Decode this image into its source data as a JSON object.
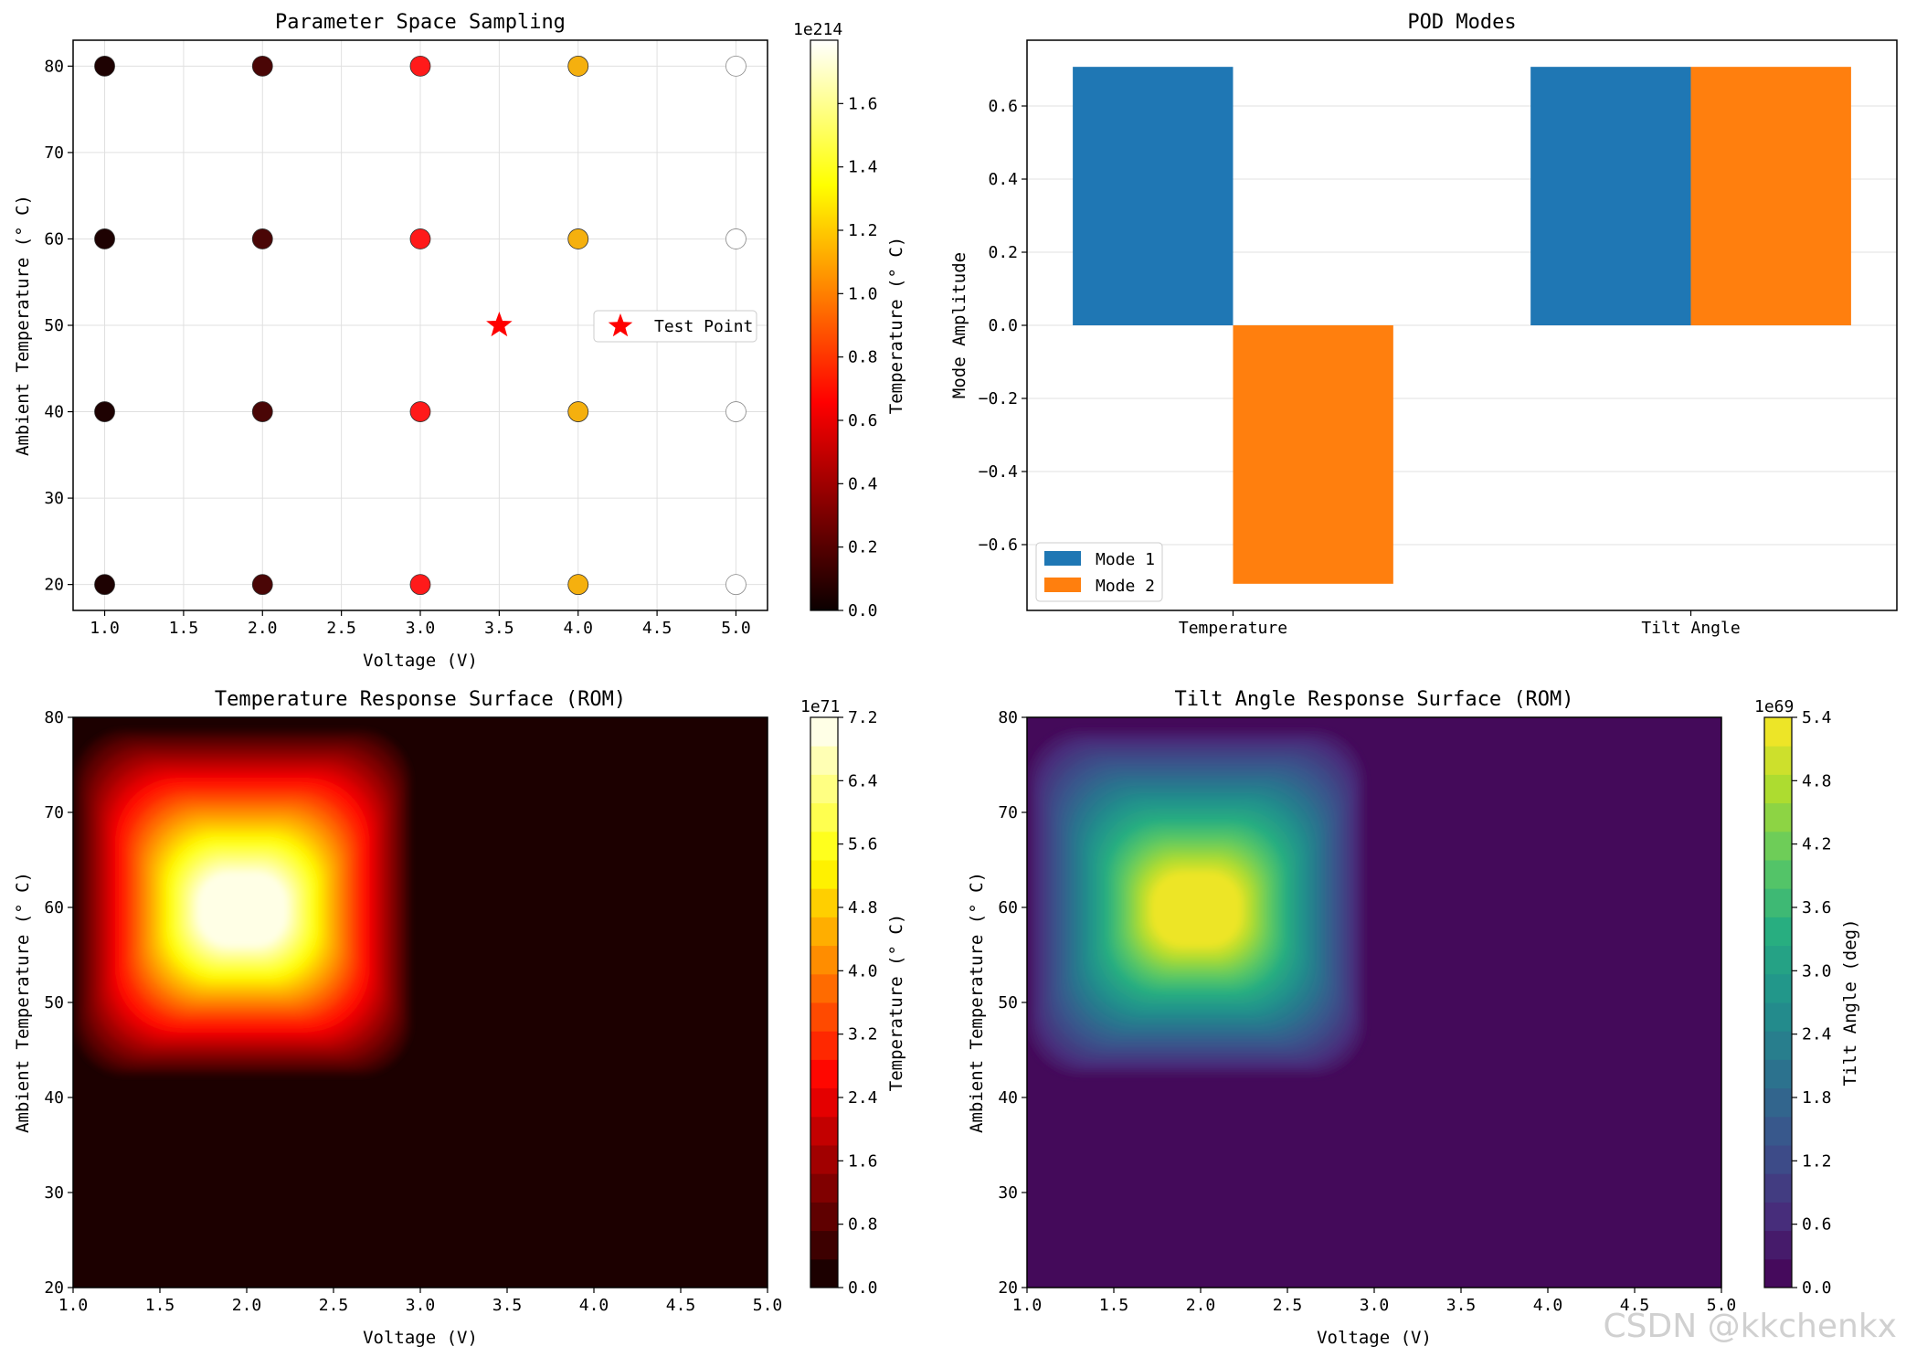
{
  "chart_data": [
    {
      "type": "scatter",
      "title": "Parameter Space Sampling",
      "xlabel": "Voltage (V)",
      "ylabel": "Ambient Temperature (° C)",
      "xlim": [
        0.8,
        5.2
      ],
      "ylim": [
        17,
        83
      ],
      "xticks": [
        "1.0",
        "1.5",
        "2.0",
        "2.5",
        "3.0",
        "3.5",
        "4.0",
        "4.5",
        "5.0"
      ],
      "yticks": [
        "20",
        "30",
        "40",
        "50",
        "60",
        "70",
        "80"
      ],
      "grid": true,
      "points": [
        {
          "x": 1,
          "y": 20,
          "color": "#1e0202"
        },
        {
          "x": 1,
          "y": 40,
          "color": "#1e0202"
        },
        {
          "x": 1,
          "y": 60,
          "color": "#1e0202"
        },
        {
          "x": 1,
          "y": 80,
          "color": "#1e0202"
        },
        {
          "x": 2,
          "y": 20,
          "color": "#4a0606"
        },
        {
          "x": 2,
          "y": 40,
          "color": "#4a0606"
        },
        {
          "x": 2,
          "y": 60,
          "color": "#4a0606"
        },
        {
          "x": 2,
          "y": 80,
          "color": "#4a0606"
        },
        {
          "x": 3,
          "y": 20,
          "color": "#ff1a1a"
        },
        {
          "x": 3,
          "y": 40,
          "color": "#ff1a1a"
        },
        {
          "x": 3,
          "y": 60,
          "color": "#ff1a1a"
        },
        {
          "x": 3,
          "y": 80,
          "color": "#ff1a1a"
        },
        {
          "x": 4,
          "y": 20,
          "color": "#f5b00e"
        },
        {
          "x": 4,
          "y": 40,
          "color": "#f5b00e"
        },
        {
          "x": 4,
          "y": 60,
          "color": "#f5b00e"
        },
        {
          "x": 4,
          "y": 80,
          "color": "#f5b00e"
        },
        {
          "x": 5,
          "y": 20,
          "color": "#ffffff"
        },
        {
          "x": 5,
          "y": 40,
          "color": "#ffffff"
        },
        {
          "x": 5,
          "y": 60,
          "color": "#ffffff"
        },
        {
          "x": 5,
          "y": 80,
          "color": "#ffffff"
        }
      ],
      "test_point": {
        "x": 3.5,
        "y": 50,
        "label": "Test Point",
        "color": "#ff0000"
      },
      "colorbar": {
        "label": "Temperature (° C)",
        "exponent": "1e214",
        "min": 0,
        "max": 1.8,
        "ticks": [
          "0.0",
          "0.2",
          "0.4",
          "0.6",
          "0.8",
          "1.0",
          "1.2",
          "1.4",
          "1.6"
        ],
        "colormap": "hot"
      }
    },
    {
      "type": "bar",
      "title": "POD Modes",
      "categories": [
        "Temperature",
        "Tilt Angle"
      ],
      "series": [
        {
          "name": "Mode 1",
          "values": [
            0.7071,
            0.7071
          ],
          "color": "#1f77b4"
        },
        {
          "name": "Mode 2",
          "values": [
            -0.7071,
            0.7071
          ],
          "color": "#ff7f0e"
        }
      ],
      "xlabel": "",
      "ylabel": "Mode Amplitude",
      "ylim": [
        -0.78,
        0.78
      ],
      "yticks": [
        "−0.6",
        "−0.4",
        "−0.2",
        "0.0",
        "0.2",
        "0.4",
        "0.6"
      ],
      "grid": true,
      "legend_position": "lower-left"
    },
    {
      "type": "heatmap",
      "title": "Temperature Response Surface (ROM)",
      "xlabel": "Voltage (V)",
      "ylabel": "Ambient Temperature (° C)",
      "xlim": [
        1.0,
        5.0
      ],
      "ylim": [
        20,
        80
      ],
      "xticks": [
        "1.0",
        "1.5",
        "2.0",
        "2.5",
        "3.0",
        "3.5",
        "4.0",
        "4.5",
        "5.0"
      ],
      "yticks": [
        "20",
        "30",
        "40",
        "50",
        "60",
        "70",
        "80"
      ],
      "peak": {
        "x": 2.0,
        "y": 60,
        "value": 7.2
      },
      "colormap": "hot",
      "levels": 20,
      "colorbar": {
        "label": "Temperature (° C)",
        "exponent": "1e71",
        "min": 0,
        "max": 7.2,
        "ticks": [
          "0.0",
          "0.8",
          "1.6",
          "2.4",
          "3.2",
          "4.0",
          "4.8",
          "5.6",
          "6.4",
          "7.2"
        ]
      }
    },
    {
      "type": "heatmap",
      "title": "Tilt Angle Response Surface (ROM)",
      "xlabel": "Voltage (V)",
      "ylabel": "Ambient Temperature (° C)",
      "xlim": [
        1.0,
        5.0
      ],
      "ylim": [
        20,
        80
      ],
      "xticks": [
        "1.0",
        "1.5",
        "2.0",
        "2.5",
        "3.0",
        "3.5",
        "4.0",
        "4.5",
        "5.0"
      ],
      "yticks": [
        "20",
        "30",
        "40",
        "50",
        "60",
        "70",
        "80"
      ],
      "peak": {
        "x": 2.0,
        "y": 60,
        "value": 5.4
      },
      "colormap": "viridis",
      "levels": 20,
      "colorbar": {
        "label": "Tilt Angle (deg)",
        "exponent": "1e69",
        "min": 0,
        "max": 5.4,
        "ticks": [
          "0.0",
          "0.6",
          "1.2",
          "1.8",
          "2.4",
          "3.0",
          "3.6",
          "4.2",
          "4.8",
          "5.4"
        ]
      }
    }
  ],
  "watermark": "CSDN @kkchenkx"
}
